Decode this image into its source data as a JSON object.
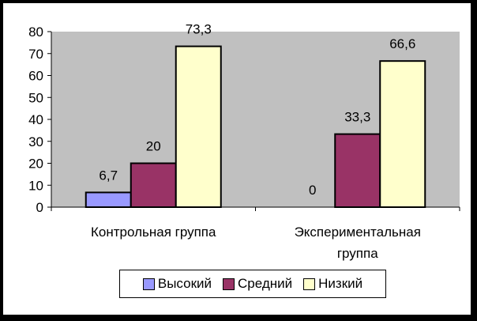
{
  "chart_data": {
    "type": "bar",
    "categories": [
      "Контрольная группа",
      "Экспериментальная группа"
    ],
    "category_lines": [
      [
        "Контрольная группа"
      ],
      [
        "Экспериментальная",
        "группа"
      ]
    ],
    "series": [
      {
        "name": "Высокий",
        "values": [
          6.7,
          0
        ],
        "labels": [
          "6,7",
          "0"
        ],
        "color": "#9999FF"
      },
      {
        "name": "Средний",
        "values": [
          20,
          33.3
        ],
        "labels": [
          "20",
          "33,3"
        ],
        "color": "#993366"
      },
      {
        "name": "Низкий",
        "values": [
          73.3,
          66.6
        ],
        "labels": [
          "73,3",
          "66,6"
        ],
        "color": "#FFFFCC"
      }
    ],
    "ylim": [
      0,
      80
    ],
    "yticks": [
      0,
      10,
      20,
      30,
      40,
      50,
      60,
      70,
      80
    ],
    "plot_background": "#C0C0C0",
    "legend_position": "bottom",
    "grid": false
  }
}
